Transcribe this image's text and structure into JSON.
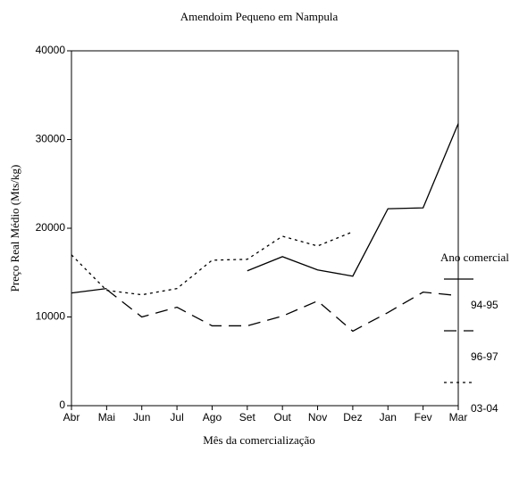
{
  "chart_data": {
    "type": "line",
    "title": "Amendoim Pequeno em Nampula",
    "xlabel": "Mês da comercialização",
    "ylabel": "Preço Real Médio (Mts/kg)",
    "categories": [
      "Abr",
      "Mai",
      "Jun",
      "Jul",
      "Ago",
      "Set",
      "Out",
      "Nov",
      "Dez",
      "Jan",
      "Fev",
      "Mar"
    ],
    "ylim": [
      0,
      40000
    ],
    "yticks": [
      0,
      10000,
      20000,
      30000,
      40000
    ],
    "legend_title": "Ano comercial",
    "series": [
      {
        "name": "94-95",
        "color": "#000000",
        "dash": "solid",
        "values": [
          12700,
          13200,
          null,
          null,
          null,
          15200,
          16800,
          15300,
          14600,
          22200,
          22300,
          31800
        ]
      },
      {
        "name": "96-97",
        "color": "#000000",
        "dash": "dashed",
        "values": [
          null,
          13100,
          10000,
          11100,
          9000,
          9000,
          10100,
          11800,
          8400,
          10500,
          12800,
          12400
        ]
      },
      {
        "name": "03-04",
        "color": "#000000",
        "dash": "dotted",
        "values": [
          17000,
          13000,
          12500,
          13200,
          16400,
          16500,
          19100,
          18000,
          19600,
          null,
          null,
          null
        ]
      }
    ]
  }
}
